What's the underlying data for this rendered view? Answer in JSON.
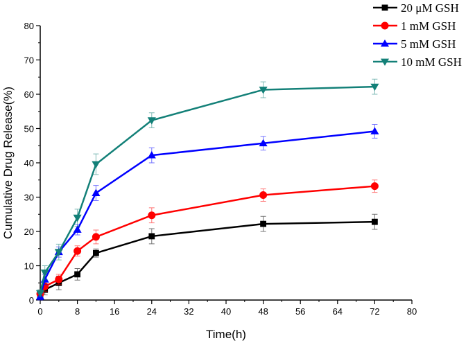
{
  "chart_data": {
    "type": "line",
    "title": "",
    "xlabel": "Time(h)",
    "ylabel": "Cumulative Drug Release(%)",
    "xlim": [
      0,
      80
    ],
    "ylim": [
      0,
      80
    ],
    "xticks": [
      0,
      8,
      16,
      24,
      32,
      40,
      48,
      56,
      64,
      72,
      80
    ],
    "yticks": [
      0,
      10,
      20,
      30,
      40,
      50,
      60,
      70,
      80
    ],
    "grid": false,
    "legend_position": "top-right",
    "x": [
      0,
      1,
      4,
      8,
      12,
      24,
      48,
      72
    ],
    "series": [
      {
        "name": "20 μM GSH",
        "color": "#000000",
        "marker": "square",
        "values": [
          1.5,
          3,
          5,
          7.5,
          13.7,
          18.6,
          22.2,
          22.8
        ],
        "error": [
          1,
          1.5,
          2,
          1.7,
          1.2,
          2.2,
          2.2,
          2.2
        ]
      },
      {
        "name": "1 mM GSH",
        "color": "#ff0000",
        "marker": "circle",
        "values": [
          1.8,
          4,
          6,
          14.3,
          18.4,
          24.7,
          30.6,
          33.2
        ],
        "error": [
          1,
          1.5,
          1.5,
          1.5,
          2,
          2.2,
          1.8,
          1.8
        ]
      },
      {
        "name": "5 mM GSH",
        "color": "#0000ff",
        "marker": "triangle-up",
        "values": [
          1,
          6,
          14,
          20.5,
          31.2,
          42.2,
          45.7,
          49.2
        ],
        "error": [
          1,
          1.5,
          1.5,
          1.5,
          2.2,
          2.2,
          2,
          2
        ]
      },
      {
        "name": "10 mM GSH",
        "color": "#138078",
        "marker": "triangle-down",
        "values": [
          2,
          8,
          14,
          24,
          39.6,
          52.4,
          61.3,
          62.2
        ],
        "error": [
          1,
          2,
          2.3,
          2.5,
          3,
          2.2,
          2.3,
          2.2
        ]
      }
    ]
  }
}
